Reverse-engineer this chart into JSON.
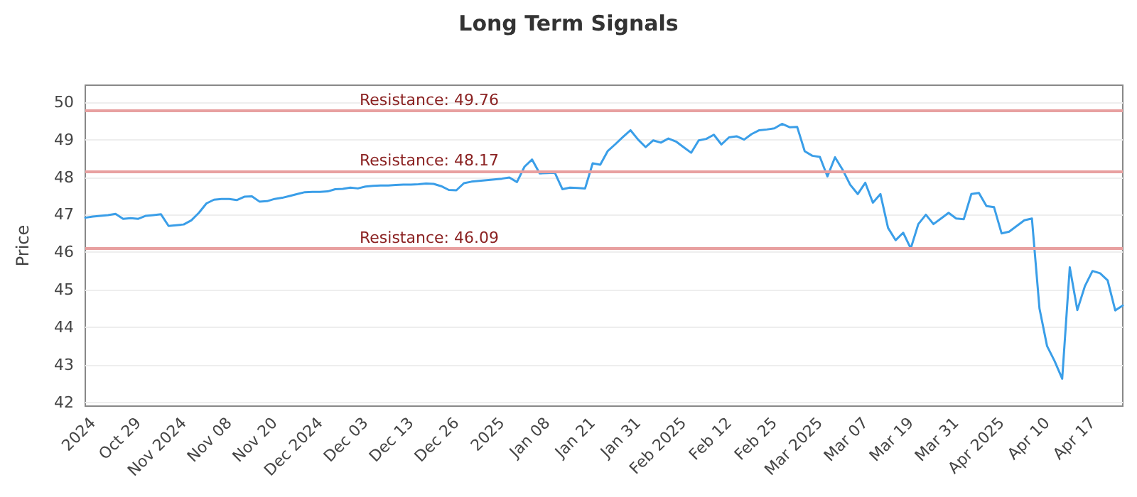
{
  "chart_data": {
    "type": "line",
    "title": "Long Term Signals",
    "ylabel": "Price",
    "categories": [
      null,
      "2024",
      null,
      null,
      null,
      null,
      null,
      "Oct 29",
      null,
      null,
      null,
      null,
      null,
      "Nov 2024",
      null,
      null,
      null,
      null,
      null,
      "Nov 08",
      null,
      null,
      null,
      null,
      null,
      "Nov 20",
      null,
      null,
      null,
      null,
      null,
      "Dec 2024",
      null,
      null,
      null,
      null,
      null,
      "Dec 03",
      null,
      null,
      null,
      null,
      null,
      "Dec 13",
      null,
      null,
      null,
      null,
      null,
      "Dec 26",
      null,
      null,
      null,
      null,
      null,
      "2025",
      null,
      null,
      null,
      null,
      null,
      "Jan 08",
      null,
      null,
      null,
      null,
      null,
      "Jan 21",
      null,
      null,
      null,
      null,
      null,
      "Jan 31",
      null,
      null,
      null,
      null,
      null,
      "Feb 2025",
      null,
      null,
      null,
      null,
      null,
      "Feb 12",
      null,
      null,
      null,
      null,
      null,
      "Feb 25",
      null,
      null,
      null,
      null,
      null,
      "Mar 2025",
      null,
      null,
      null,
      null,
      null,
      "Mar 07",
      null,
      null,
      null,
      null,
      null,
      "Mar 19",
      null,
      null,
      null,
      null,
      null,
      "Mar 31",
      null,
      null,
      null,
      null,
      null,
      "Apr 2025",
      null,
      null,
      null,
      null,
      null,
      "Apr 10",
      null,
      null,
      null,
      null,
      null,
      "Apr 17",
      null,
      null,
      null,
      null
    ],
    "series": [
      {
        "color": "#3a9ee8",
        "values": [
          46.92,
          46.95,
          46.97,
          46.99,
          47.02,
          46.89,
          46.91,
          46.89,
          46.97,
          46.99,
          47.01,
          46.7,
          46.72,
          46.74,
          46.85,
          47.05,
          47.3,
          47.4,
          47.42,
          47.42,
          47.39,
          47.48,
          47.49,
          47.35,
          47.36,
          47.42,
          47.45,
          47.5,
          47.55,
          47.6,
          47.61,
          47.61,
          47.62,
          47.68,
          47.69,
          47.72,
          47.7,
          47.75,
          47.77,
          47.78,
          47.78,
          47.79,
          47.8,
          47.8,
          47.81,
          47.83,
          47.82,
          47.76,
          47.66,
          47.65,
          47.84,
          47.88,
          47.9,
          47.92,
          47.94,
          47.96,
          47.99,
          47.87,
          48.28,
          48.47,
          48.1,
          48.11,
          48.12,
          47.68,
          47.72,
          47.71,
          47.7,
          48.37,
          48.33,
          48.7,
          48.88,
          49.07,
          49.25,
          49.0,
          48.8,
          48.98,
          48.92,
          49.03,
          48.95,
          48.8,
          48.65,
          48.98,
          49.02,
          49.13,
          48.87,
          49.06,
          49.09,
          49.0,
          49.15,
          49.25,
          49.27,
          49.3,
          49.42,
          49.33,
          49.34,
          48.69,
          48.57,
          48.54,
          48.02,
          48.53,
          48.2,
          47.8,
          47.55,
          47.85,
          47.32,
          47.55,
          46.65,
          46.32,
          46.52,
          46.1,
          46.75,
          47.0,
          46.75,
          46.9,
          47.05,
          46.9,
          46.88,
          47.55,
          47.58,
          47.23,
          47.2,
          46.5,
          46.55,
          46.7,
          46.85,
          46.9,
          44.5,
          43.5,
          43.1,
          42.63,
          45.6,
          44.46,
          45.1,
          45.5,
          45.44,
          45.25,
          44.45,
          44.58
        ]
      }
    ],
    "ylim": [
      41.9,
      50.45
    ],
    "yticks": [
      42,
      43,
      44,
      45,
      46,
      47,
      48,
      49,
      50
    ],
    "grid": "y",
    "marker": "none",
    "line_style": "solid",
    "ref_lines": [
      {
        "axis": "y",
        "value": 49.76,
        "label": "Resistance: 49.76",
        "color": "#e8a0a0"
      },
      {
        "axis": "y",
        "value": 48.17,
        "label": "Resistance: 48.17",
        "color": "#e8a0a0"
      },
      {
        "axis": "y",
        "value": 46.09,
        "label": "Resistance: 46.09",
        "color": "#e8a0a0"
      }
    ]
  }
}
